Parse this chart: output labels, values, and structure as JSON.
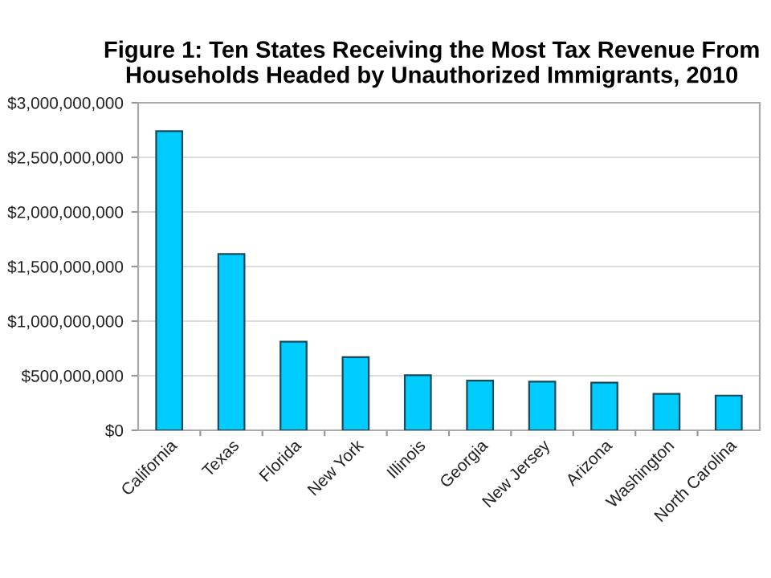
{
  "chart_data": {
    "type": "bar",
    "title": "Figure 1: Ten States Receiving the Most Tax Revenue From\nHouseholds Headed by Unauthorized Immigrants, 2010",
    "categories": [
      "California",
      "Texas",
      "Florida",
      "New York",
      "Illinois",
      "Georgia",
      "New Jersey",
      "Arizona",
      "Washington",
      "North Carolina"
    ],
    "values": [
      2740000000,
      1615000000,
      812000000,
      670000000,
      504000000,
      455000000,
      445000000,
      436000000,
      333000000,
      318000000
    ],
    "color": "#00ccff",
    "ylim": [
      0,
      3000000000
    ],
    "yticks": [
      {
        "value": 0,
        "label": "$0"
      },
      {
        "value": 500000000,
        "label": "$500,000,000"
      },
      {
        "value": 1000000000,
        "label": "$1,000,000,000"
      },
      {
        "value": 1500000000,
        "label": "$1,500,000,000"
      },
      {
        "value": 2000000000,
        "label": "$2,000,000,000"
      },
      {
        "value": 2500000000,
        "label": "$2,500,000,000"
      },
      {
        "value": 3000000000,
        "label": "$3,000,000,000"
      }
    ],
    "grid": "y"
  }
}
